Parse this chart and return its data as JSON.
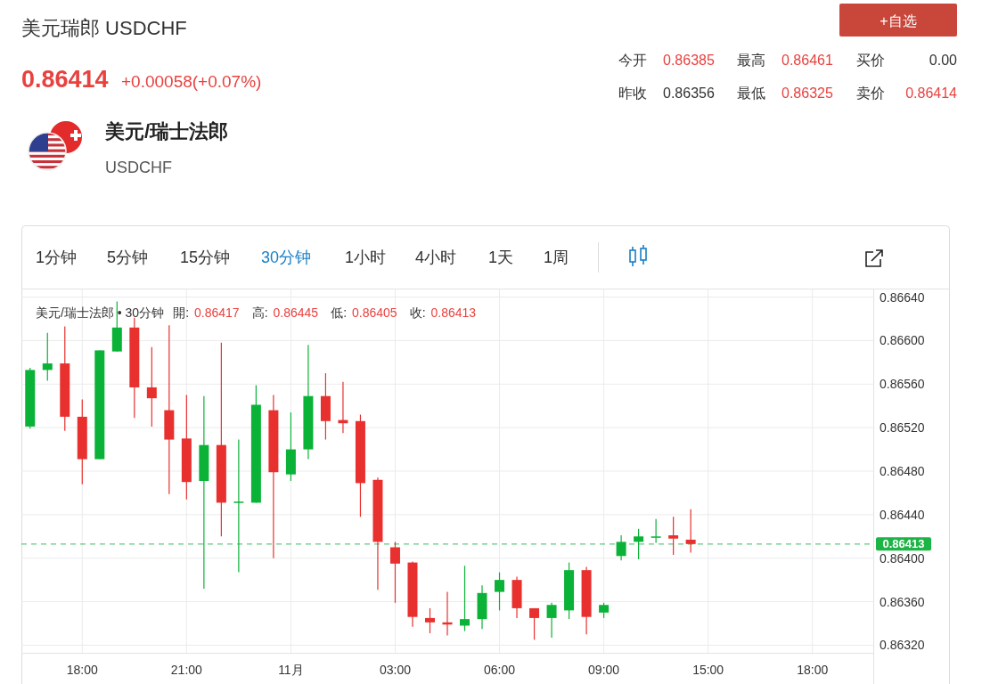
{
  "chart_data": {
    "type": "candlestick",
    "title": "美元瑞郎 USDCHF",
    "annotations": [
      "0.86414",
      "+0.00058(+0.07%)",
      "美元/瑞士法郎",
      "USDCHF",
      "+自选",
      "今开",
      "0.86385",
      "最高",
      "0.86461",
      "买价",
      "0.00",
      "昨收",
      "0.86356",
      "最低",
      "0.86325",
      "卖价",
      "0.86414",
      "1分钟",
      "5分钟",
      "15分钟",
      "30分钟",
      "1小时",
      "4小时",
      "1天",
      "1周",
      "美元/瑞士法郎 • 30分钟",
      "開:",
      "0.86417",
      "高:",
      "0.86445",
      "低:",
      "0.86405",
      "收:",
      "0.86413"
    ],
    "categories": [
      null,
      null,
      null,
      "18:00",
      null,
      null,
      null,
      null,
      null,
      "21:00",
      null,
      null,
      null,
      null,
      null,
      "11月",
      null,
      null,
      null,
      null,
      null,
      "03:00",
      null,
      null,
      null,
      null,
      null,
      "06:00",
      null,
      null,
      null,
      null,
      null,
      "09:00",
      null,
      null,
      null,
      null,
      null,
      "15:00",
      null,
      null,
      null,
      null,
      null,
      "18:00",
      null,
      null,
      null
    ],
    "ohlc": [
      [
        0.86521,
        0.86575,
        0.86519,
        0.86573
      ],
      [
        0.86573,
        0.86607,
        0.86563,
        0.86579
      ],
      [
        0.86579,
        0.86613,
        0.86517,
        0.8653
      ],
      [
        0.8653,
        0.86546,
        0.86468,
        0.86491
      ],
      [
        0.86491,
        0.86591,
        0.86491,
        0.86591
      ],
      [
        0.8659,
        0.86636,
        0.8659,
        0.86612
      ],
      [
        0.86612,
        0.86621,
        0.86529,
        0.86557
      ],
      [
        0.86557,
        0.86594,
        0.86521,
        0.86547
      ],
      [
        0.86536,
        0.86614,
        0.86459,
        0.86509
      ],
      [
        0.8651,
        0.8655,
        0.86454,
        0.8647
      ],
      [
        0.86471,
        0.86549,
        0.86372,
        0.86504
      ],
      [
        0.86504,
        0.86598,
        0.8642,
        0.86451
      ],
      [
        0.86452,
        0.86509,
        0.86387,
        0.86452
      ],
      [
        0.86451,
        0.86559,
        0.86451,
        0.86541
      ],
      [
        0.86536,
        0.8655,
        0.864,
        0.86479
      ],
      [
        0.86477,
        0.86534,
        0.86471,
        0.865
      ],
      [
        0.865,
        0.86596,
        0.86491,
        0.86549
      ],
      [
        0.86549,
        0.8657,
        0.86509,
        0.86526
      ],
      [
        0.86527,
        0.86562,
        0.86515,
        0.86524
      ],
      [
        0.86526,
        0.86532,
        0.86438,
        0.86469
      ],
      [
        0.86472,
        0.86474,
        0.86371,
        0.86415
      ],
      [
        0.8641,
        0.86415,
        0.86359,
        0.86395
      ],
      [
        0.86396,
        0.86397,
        0.86337,
        0.86346
      ],
      [
        0.86345,
        0.86354,
        0.86331,
        0.86341
      ],
      [
        0.86341,
        0.86369,
        0.86329,
        0.86339
      ],
      [
        0.86338,
        0.86393,
        0.86333,
        0.86344
      ],
      [
        0.86344,
        0.86375,
        0.86335,
        0.86368
      ],
      [
        0.86369,
        0.86387,
        0.86352,
        0.8638
      ],
      [
        0.8638,
        0.86383,
        0.86345,
        0.86354
      ],
      [
        0.86354,
        0.86354,
        0.86325,
        0.86345
      ],
      [
        0.86345,
        0.86359,
        0.86327,
        0.86357
      ],
      [
        0.86352,
        0.86396,
        0.86344,
        0.86389
      ],
      [
        0.86389,
        0.86392,
        0.8633,
        0.86346
      ],
      [
        0.8635,
        0.86359,
        0.86345,
        0.86357
      ],
      [
        0.86402,
        0.86421,
        0.86398,
        0.86415
      ],
      [
        0.86415,
        0.86427,
        0.86399,
        0.8642
      ],
      [
        0.8642,
        0.86436,
        0.86414,
        0.8642
      ],
      [
        0.86421,
        0.86438,
        0.86403,
        0.86418
      ],
      [
        0.86417,
        0.86445,
        0.86405,
        0.86413
      ],
      null,
      null,
      null,
      null,
      null,
      null,
      null,
      null,
      null,
      null
    ],
    "colors": [
      "#0bb238",
      "#0bb238",
      "#e8302f",
      "#e8302f",
      "#0bb238",
      "#0bb238",
      "#e8302f",
      "#e8302f",
      "#e8302f",
      "#e8302f",
      "#0bb238",
      "#e8302f",
      "#0bb238",
      "#0bb238",
      "#e8302f",
      "#0bb238",
      "#0bb238",
      "#e8302f",
      "#e8302f",
      "#e8302f",
      "#e8302f",
      "#e8302f",
      "#e8302f",
      "#e8302f",
      "#e8302f",
      "#0bb238",
      "#0bb238",
      "#0bb238",
      "#e8302f",
      "#e8302f",
      "#0bb238",
      "#0bb238",
      "#e8302f",
      "#0bb238",
      "#0bb238",
      "#0bb238",
      "#0bb238",
      "#e8302f",
      "#e8302f",
      null,
      null,
      null,
      null,
      null,
      null,
      null,
      null,
      null,
      null
    ],
    "ylim": [
      0.86313,
      0.86647
    ],
    "yticks": [
      {
        "value": 0.8632,
        "label": "0.86320"
      },
      {
        "value": 0.8636,
        "label": "0.86360"
      },
      {
        "value": 0.864,
        "label": "0.86400"
      },
      {
        "value": 0.8644,
        "label": "0.86440"
      },
      {
        "value": 0.8648,
        "label": "0.86480"
      },
      {
        "value": 0.8652,
        "label": "0.86520"
      },
      {
        "value": 0.8656,
        "label": "0.86560"
      },
      {
        "value": 0.866,
        "label": "0.86600"
      },
      {
        "value": 0.8664,
        "label": "0.86640"
      }
    ],
    "ref_lines": [
      {
        "axis": "y",
        "value": 0.86413,
        "label": "0.86413",
        "color": "#1db446",
        "line_style": "dashed"
      }
    ],
    "grid": true
  }
}
